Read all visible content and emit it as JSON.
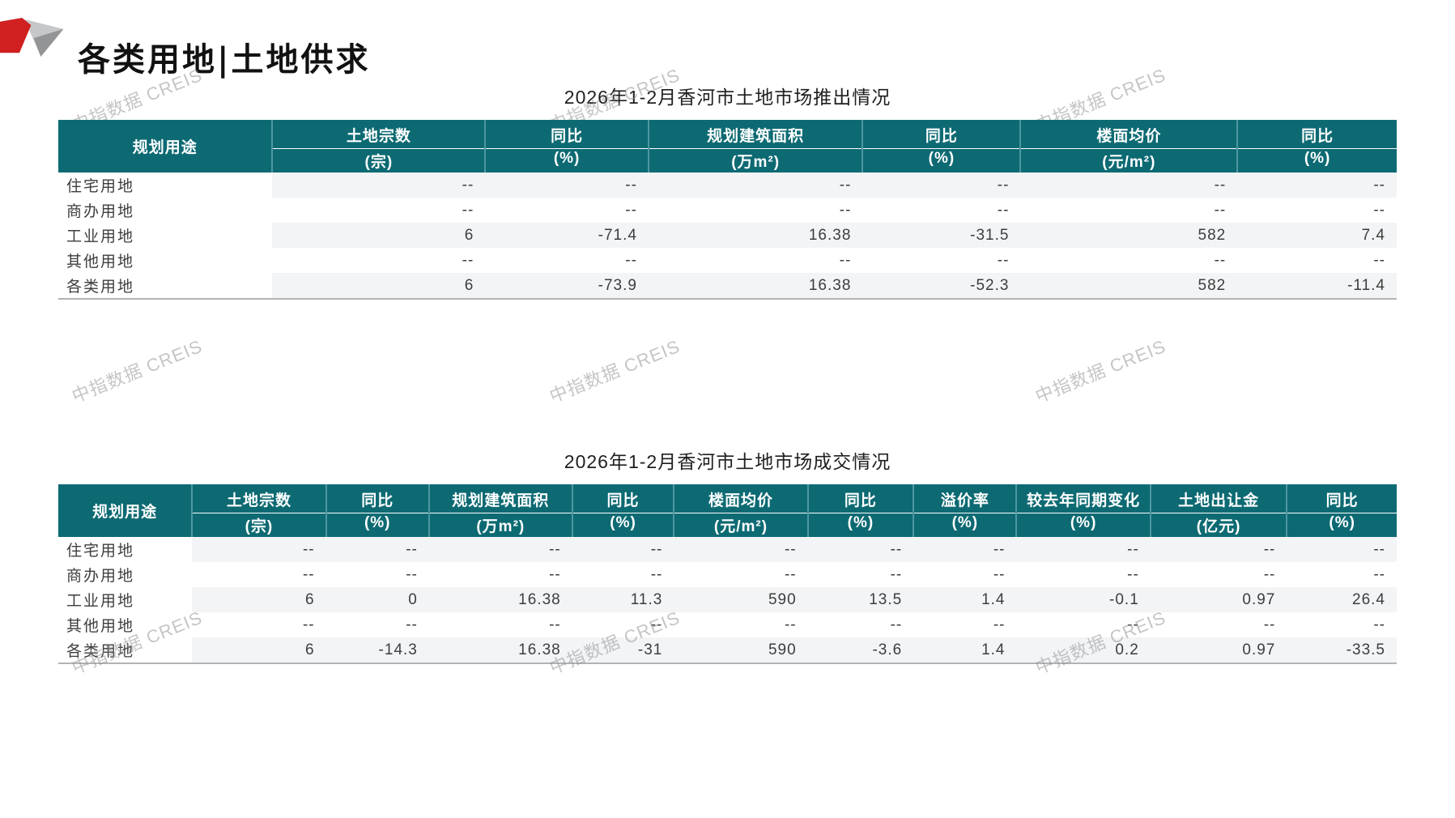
{
  "page": {
    "title": "各类用地|土地供求",
    "watermark": "中指数据 CREIS"
  },
  "colors": {
    "header_bg": "#0d6a73",
    "header_separator": "#4e97a1",
    "row_stripe": "#f2f4f6",
    "logo_red": "#d02020",
    "logo_gray_light": "#c6c7c8",
    "logo_gray_dark": "#939495"
  },
  "tables": [
    {
      "title": "2026年1-2月香河市土地市场推出情况",
      "columns": [
        {
          "label": "规划用途",
          "unit": ""
        },
        {
          "label": "土地宗数",
          "unit": "(宗)"
        },
        {
          "label": "同比",
          "unit": "(%)"
        },
        {
          "label": "规划建筑面积",
          "unit": "(万m²)"
        },
        {
          "label": "同比",
          "unit": "(%)"
        },
        {
          "label": "楼面均价",
          "unit": "(元/m²)"
        },
        {
          "label": "同比",
          "unit": "(%)"
        }
      ],
      "rows": [
        [
          "住宅用地",
          "--",
          "--",
          "--",
          "--",
          "--",
          "--"
        ],
        [
          "商办用地",
          "--",
          "--",
          "--",
          "--",
          "--",
          "--"
        ],
        [
          "工业用地",
          "6",
          "-71.4",
          "16.38",
          "-31.5",
          "582",
          "7.4"
        ],
        [
          "其他用地",
          "--",
          "--",
          "--",
          "--",
          "--",
          "--"
        ],
        [
          "各类用地",
          "6",
          "-73.9",
          "16.38",
          "-52.3",
          "582",
          "-11.4"
        ]
      ]
    },
    {
      "title": "2026年1-2月香河市土地市场成交情况",
      "columns": [
        {
          "label": "规划用途",
          "unit": ""
        },
        {
          "label": "土地宗数",
          "unit": "(宗)"
        },
        {
          "label": "同比",
          "unit": "(%)"
        },
        {
          "label": "规划建筑面积",
          "unit": "(万m²)"
        },
        {
          "label": "同比",
          "unit": "(%)"
        },
        {
          "label": "楼面均价",
          "unit": "(元/m²)"
        },
        {
          "label": "同比",
          "unit": "(%)"
        },
        {
          "label": "溢价率",
          "unit": "(%)"
        },
        {
          "label": "较去年同期变化",
          "unit": "(%)"
        },
        {
          "label": "土地出让金",
          "unit": "(亿元)"
        },
        {
          "label": "同比",
          "unit": "(%)"
        }
      ],
      "rows": [
        [
          "住宅用地",
          "--",
          "--",
          "--",
          "--",
          "--",
          "--",
          "--",
          "--",
          "--",
          "--"
        ],
        [
          "商办用地",
          "--",
          "--",
          "--",
          "--",
          "--",
          "--",
          "--",
          "--",
          "--",
          "--"
        ],
        [
          "工业用地",
          "6",
          "0",
          "16.38",
          "11.3",
          "590",
          "13.5",
          "1.4",
          "-0.1",
          "0.97",
          "26.4"
        ],
        [
          "其他用地",
          "--",
          "--",
          "--",
          "--",
          "--",
          "--",
          "--",
          "--",
          "--",
          "--"
        ],
        [
          "各类用地",
          "6",
          "-14.3",
          "16.38",
          "-31",
          "590",
          "-3.6",
          "1.4",
          "0.2",
          "0.97",
          "-33.5"
        ]
      ]
    }
  ]
}
